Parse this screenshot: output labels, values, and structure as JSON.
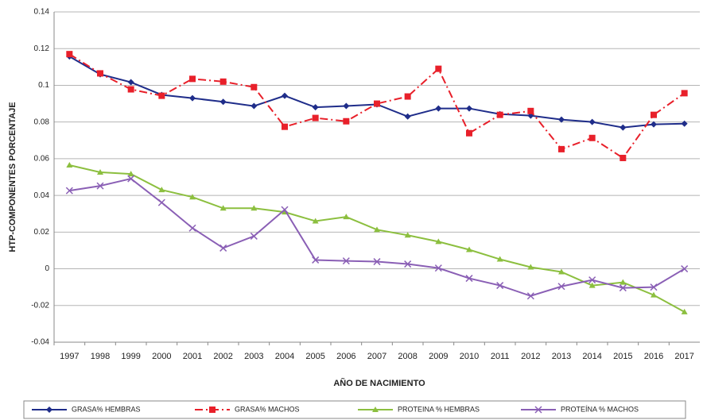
{
  "chart_data": {
    "type": "line",
    "ylabel": "HTP-COMPONENTES  PORCENTAJE",
    "xlabel": "AÑO DE NACIMIENTO",
    "categories": [
      "1997",
      "1998",
      "1999",
      "2000",
      "2001",
      "2002",
      "2003",
      "2004",
      "2005",
      "2006",
      "2007",
      "2008",
      "2009",
      "2010",
      "2011",
      "2012",
      "2013",
      "2014",
      "2015",
      "2016",
      "2017"
    ],
    "ylim": [
      -0.04,
      0.14
    ],
    "yticks": [
      -0.04,
      -0.02,
      0,
      0.02,
      0.04,
      0.06,
      0.08,
      0.1,
      0.12,
      0.14
    ],
    "grid": true,
    "legend": "bottom",
    "series": [
      {
        "name": "GRASA% HEMBRAS",
        "color": "#1f2d8a",
        "marker": "diamond",
        "dash": "solid",
        "values": [
          0.1157,
          0.106,
          0.1017,
          0.0948,
          0.093,
          0.091,
          0.0887,
          0.0943,
          0.088,
          0.0887,
          0.0896,
          0.083,
          0.0874,
          0.0874,
          0.0843,
          0.0835,
          0.0813,
          0.08,
          0.077,
          0.0787,
          0.0791
        ]
      },
      {
        "name": "GRASA% MACHOS",
        "color": "#e8202a",
        "marker": "square",
        "dash": "dashdot",
        "values": [
          0.117,
          0.1065,
          0.0978,
          0.0943,
          0.1035,
          0.102,
          0.099,
          0.0774,
          0.0822,
          0.0804,
          0.09,
          0.0939,
          0.109,
          0.0739,
          0.0839,
          0.086,
          0.0652,
          0.0713,
          0.0604,
          0.0839,
          0.0957
        ]
      },
      {
        "name": "PROTEINA % HEMBRAS",
        "color": "#8cbf3f",
        "marker": "triangle",
        "dash": "solid",
        "values": [
          0.0565,
          0.0526,
          0.0517,
          0.043,
          0.0391,
          0.033,
          0.033,
          0.0309,
          0.026,
          0.0283,
          0.0213,
          0.0183,
          0.0148,
          0.0104,
          0.0052,
          0.0009,
          -0.0017,
          -0.0091,
          -0.0074,
          -0.0143,
          -0.0235
        ]
      },
      {
        "name": "PROTEÍNA % MACHOS",
        "color": "#8a5fb5",
        "marker": "x",
        "dash": "solid",
        "values": [
          0.0426,
          0.0452,
          0.0491,
          0.0361,
          0.0222,
          0.0113,
          0.0178,
          0.0322,
          0.0048,
          0.0043,
          0.0039,
          0.0026,
          0.0004,
          -0.0052,
          -0.0091,
          -0.0148,
          -0.0096,
          -0.0061,
          -0.0104,
          -0.01,
          0
        ]
      }
    ]
  }
}
